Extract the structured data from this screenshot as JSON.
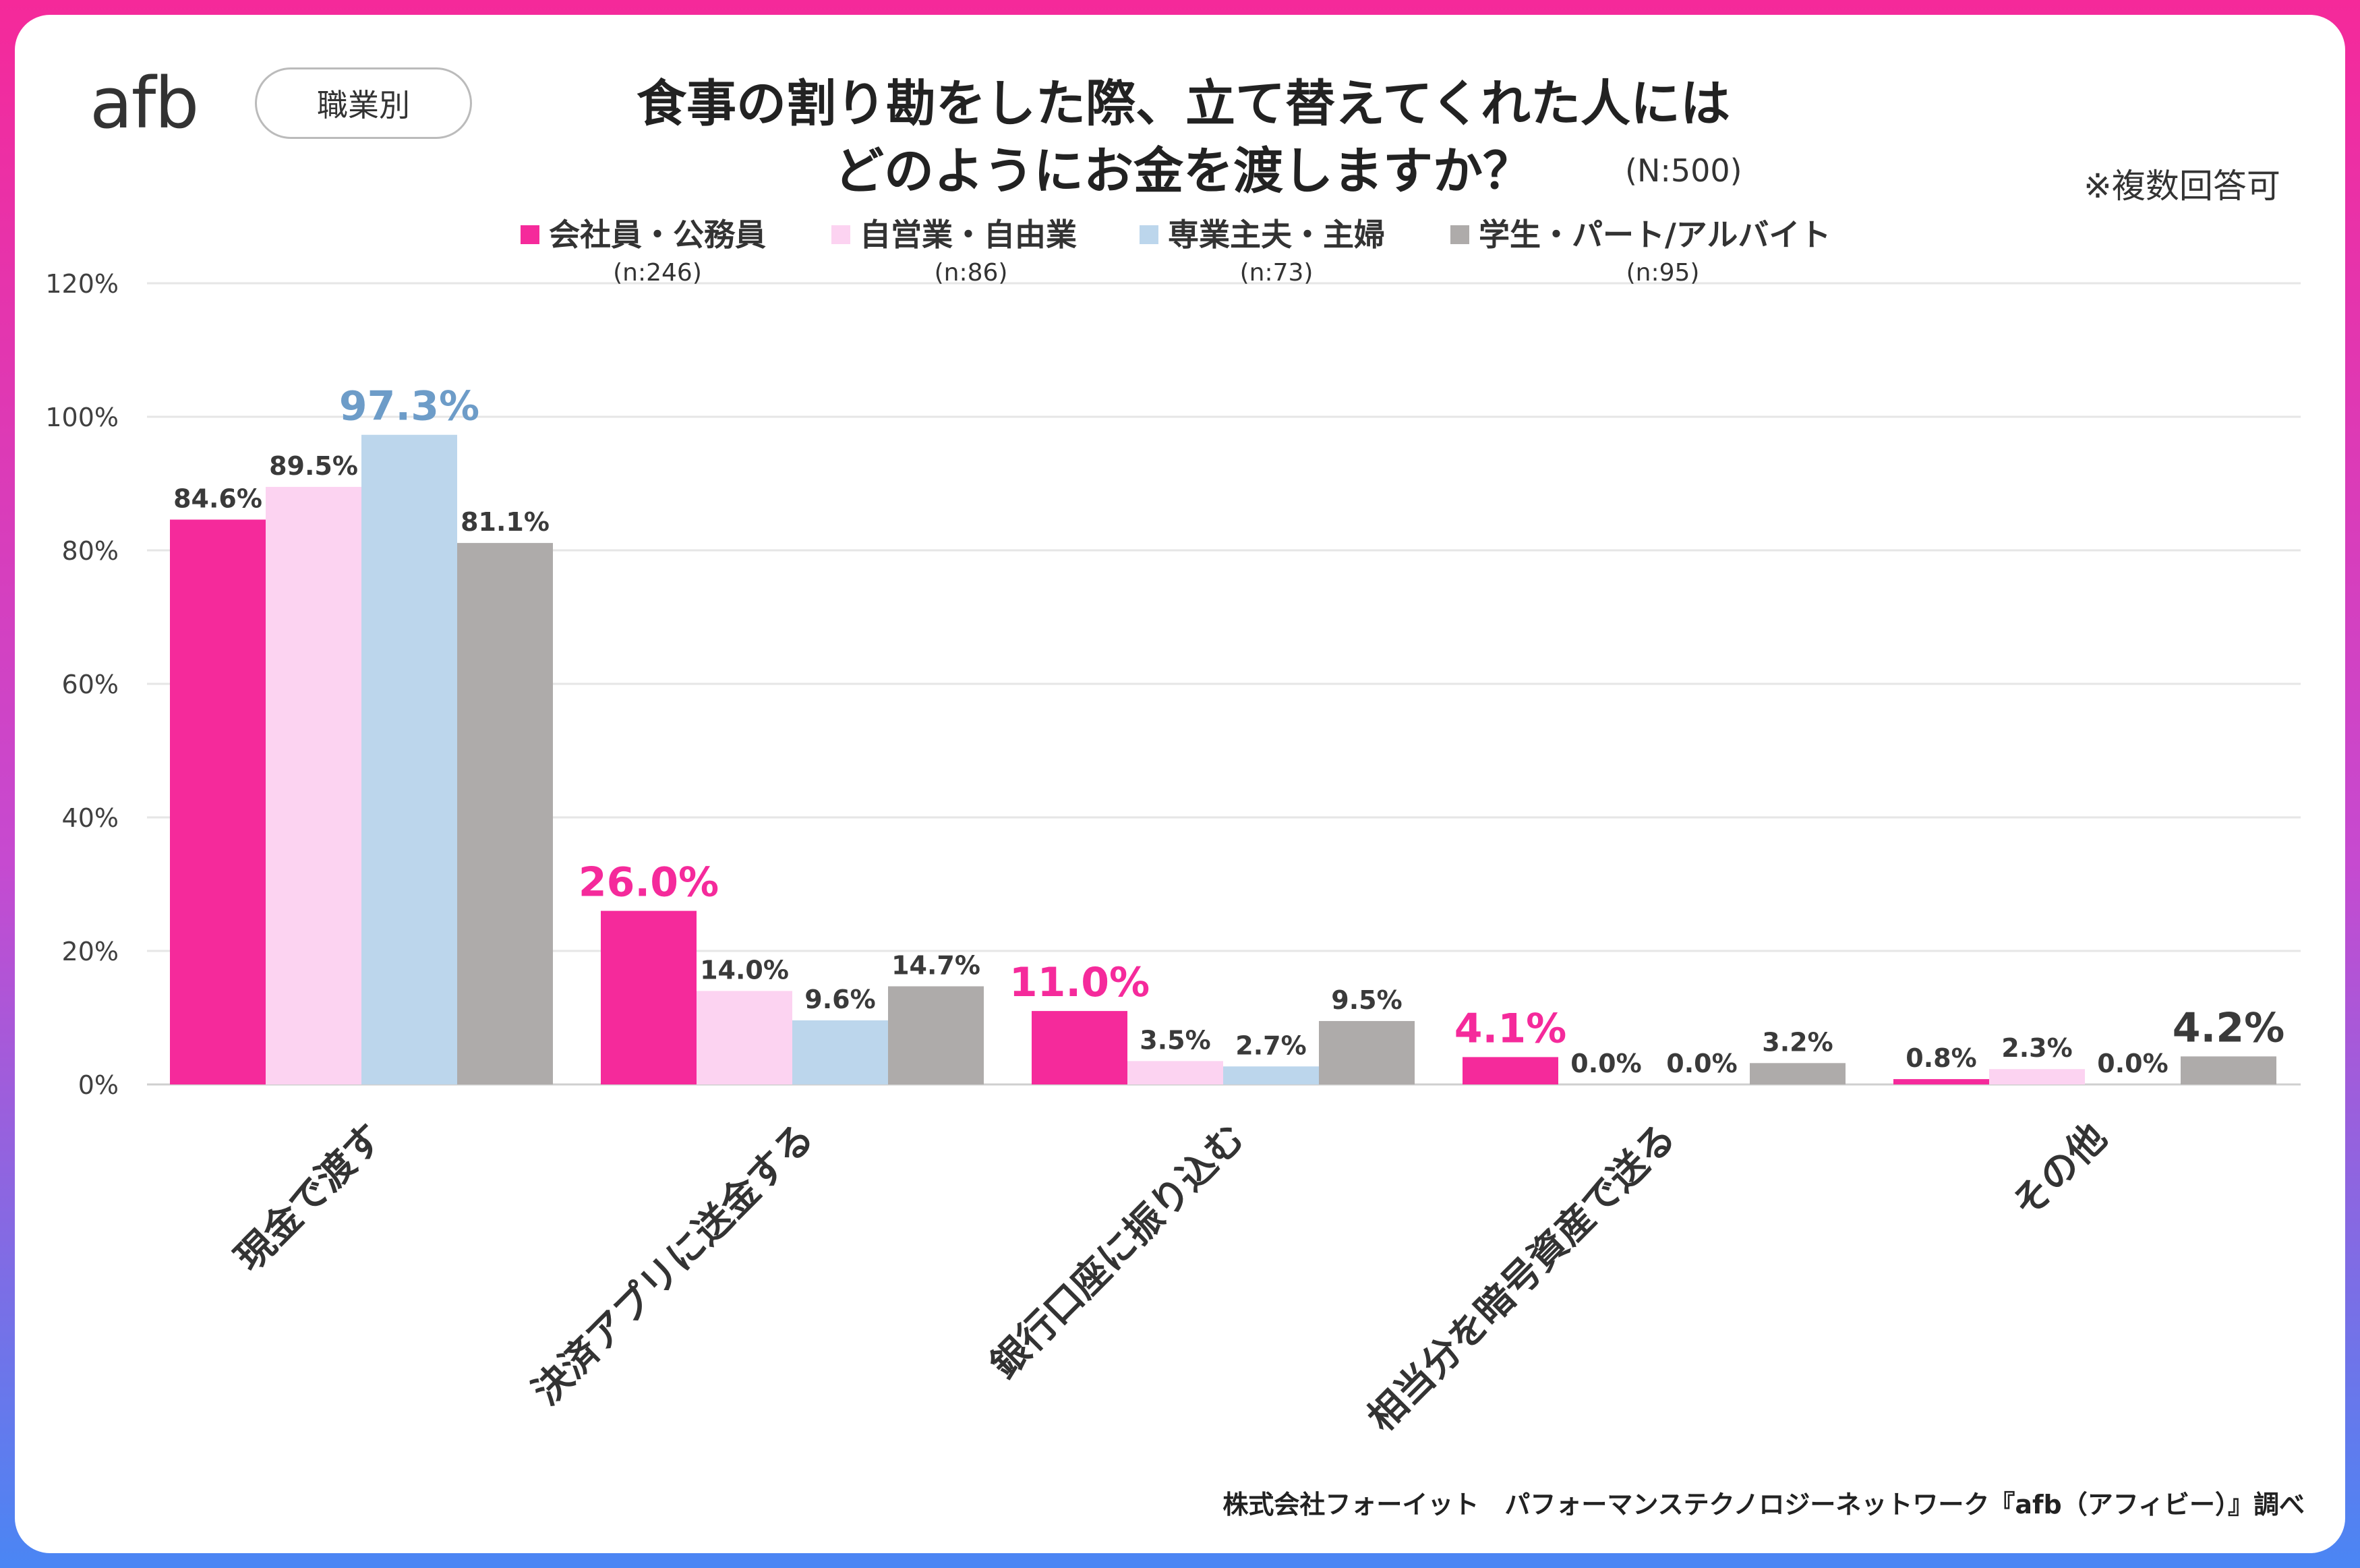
{
  "header": {
    "logo": "afb",
    "category_pill": "職業別",
    "title_line1": "食事の割り勘をした際、立て替えてくれた人には",
    "title_line2": "どのようにお金を渡しますか？",
    "total_n": "(N:500)",
    "note": "※複数回答可"
  },
  "footer": {
    "source": "株式会社フォーイット　パフォーマンステクノロジーネットワーク『afb（アフィビー）』調べ"
  },
  "colors": {
    "company": "#f52a9b",
    "self_employed": "#fcd3f1",
    "homemaker": "#bcd6ec",
    "student": "#aeabaa",
    "highlight_pink": "#f52a9b",
    "highlight_blue": "#6d9cc8",
    "highlight_dark": "#3a3a3a",
    "axis_text": "#404040",
    "grid": "#e6e6e6"
  },
  "chart_data": {
    "type": "bar",
    "categories": [
      "現金で渡す",
      "決済アプリに送金する",
      "銀行口座に振り込む",
      "相当分を暗号資産で送る",
      "その他"
    ],
    "series": [
      {
        "name": "会社員・公務員",
        "n": "(n:246)",
        "values": [
          84.6,
          26.0,
          11.0,
          4.1,
          0.8
        ]
      },
      {
        "name": "自営業・自由業",
        "n": "(n:86)",
        "values": [
          89.5,
          14.0,
          3.5,
          0.0,
          2.3
        ]
      },
      {
        "name": "専業主夫・主婦",
        "n": "(n:73)",
        "values": [
          97.3,
          9.6,
          2.7,
          0.0,
          0.0
        ]
      },
      {
        "name": "学生・パート/アルバイト",
        "n": "(n:95)",
        "values": [
          81.1,
          14.7,
          9.5,
          3.2,
          4.2
        ]
      }
    ],
    "highlights": [
      {
        "category": 0,
        "series": 2
      },
      {
        "category": 1,
        "series": 0
      },
      {
        "category": 2,
        "series": 0
      },
      {
        "category": 3,
        "series": 0
      },
      {
        "category": 4,
        "series": 3
      }
    ],
    "value_format": "{v}%",
    "ylim": [
      0,
      120
    ],
    "yticks": [
      0,
      20,
      40,
      60,
      80,
      100,
      120
    ],
    "ytick_labels": [
      "0%",
      "20%",
      "40%",
      "60%",
      "80%",
      "100%",
      "120%"
    ],
    "grid": true,
    "legend": "top-center"
  }
}
